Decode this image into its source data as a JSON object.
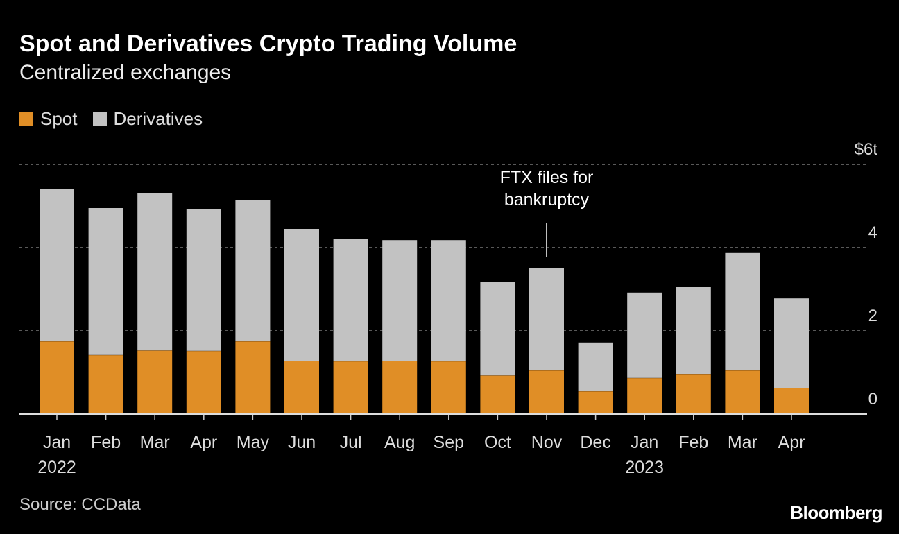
{
  "chart_data": {
    "type": "bar",
    "stacked": true,
    "title": "Spot and Derivatives Crypto Trading Volume",
    "subtitle": "Centralized exchanges",
    "categories": [
      "Jan\n2022",
      "Feb",
      "Mar",
      "Apr",
      "May",
      "Jun",
      "Jul",
      "Aug",
      "Sep",
      "Oct",
      "Nov",
      "Dec",
      "Jan\n2023",
      "Feb",
      "Mar",
      "Apr"
    ],
    "series": [
      {
        "name": "Spot",
        "color": "#e08e26",
        "values": [
          1.75,
          1.42,
          1.53,
          1.52,
          1.75,
          1.28,
          1.27,
          1.28,
          1.27,
          0.93,
          1.05,
          0.55,
          0.87,
          0.95,
          1.05,
          0.63
        ]
      },
      {
        "name": "Derivatives",
        "color": "#c2c2c2",
        "values": [
          3.65,
          3.53,
          3.77,
          3.4,
          3.4,
          3.17,
          2.93,
          2.9,
          2.91,
          2.25,
          2.45,
          1.17,
          2.05,
          2.1,
          2.82,
          2.15
        ]
      }
    ],
    "ylim": [
      0,
      6
    ],
    "yticks": [
      0,
      2,
      4,
      6
    ],
    "ytick_labels": [
      "0",
      "2",
      "4",
      "$6t"
    ],
    "grid": true,
    "legend_position": "top-left",
    "annotation": {
      "category_index": 10,
      "text": [
        "FTX files for",
        "bankruptcy"
      ]
    },
    "source": "Source: CCData",
    "logo": "Bloomberg"
  }
}
